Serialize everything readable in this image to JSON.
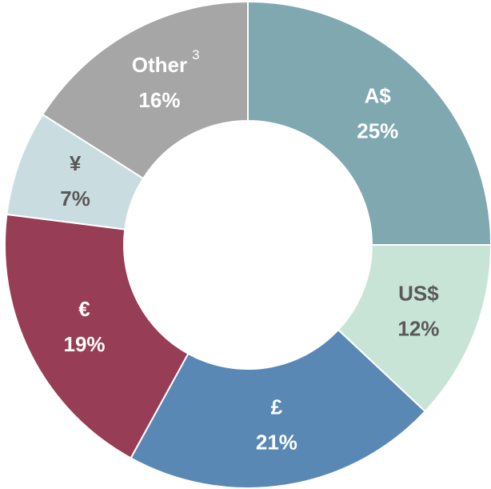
{
  "chart_data": {
    "type": "donut",
    "categories": [
      "A$",
      "US$",
      "£",
      "€",
      "¥",
      "Other"
    ],
    "values": [
      25,
      12,
      21,
      19,
      7,
      16
    ],
    "value_labels": [
      "25%",
      "12%",
      "21%",
      "19%",
      "7%",
      "16%"
    ],
    "colors": [
      "#7fa8b0",
      "#c8e4d6",
      "#5a88b5",
      "#973d55",
      "#c9dde0",
      "#a6a6a6"
    ],
    "label_colors": [
      "#ffffff",
      "#595959",
      "#ffffff",
      "#ffffff",
      "#595959",
      "#ffffff"
    ],
    "annotations": [
      {
        "category": 5,
        "text": "3"
      }
    ]
  }
}
